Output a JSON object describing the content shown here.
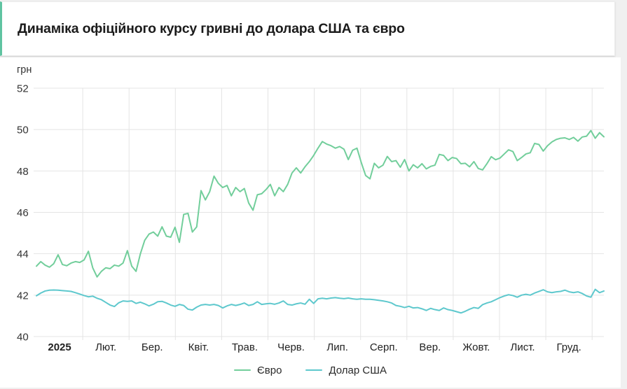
{
  "header": {
    "title": "Динаміка офіційного курсу гривні до долара США та євро",
    "accent_color": "#5fc3a1"
  },
  "chart_data": {
    "type": "line",
    "title": "Динаміка офіційного курсу гривні до долара США та євро",
    "unit_label": "грн",
    "ylabel": "грн",
    "ylim": [
      40,
      52
    ],
    "yticks": [
      52,
      50,
      48,
      46,
      44,
      42,
      40
    ],
    "grid": true,
    "legend_position": "bottom",
    "x_axis": {
      "months": [
        "2025",
        "Лют.",
        "Бер.",
        "Квіт.",
        "Трав.",
        "Черв.",
        "Лип.",
        "Серп.",
        "Вер.",
        "Жовт.",
        "Лист.",
        "Груд."
      ],
      "first_label_bold": true
    },
    "colors": {
      "grid": "#e4e4e4",
      "tick_text": "#333333"
    },
    "series": [
      {
        "name": "Євро",
        "color": "#72CE9B",
        "values": [
          43.4,
          43.62,
          43.45,
          43.35,
          43.52,
          43.95,
          43.48,
          43.42,
          43.55,
          43.62,
          43.58,
          43.7,
          44.12,
          43.32,
          42.88,
          43.15,
          43.32,
          43.28,
          43.45,
          43.4,
          43.55,
          44.15,
          43.4,
          43.15,
          44.0,
          44.65,
          44.95,
          45.05,
          44.85,
          45.3,
          44.85,
          44.8,
          45.28,
          44.55,
          45.9,
          45.95,
          45.05,
          45.3,
          47.05,
          46.6,
          47.0,
          47.75,
          47.4,
          47.2,
          47.3,
          46.8,
          47.2,
          47.0,
          47.15,
          46.45,
          46.1,
          46.85,
          46.9,
          47.1,
          47.35,
          46.8,
          47.2,
          47.0,
          47.35,
          47.9,
          48.15,
          47.9,
          48.2,
          48.45,
          48.75,
          49.1,
          49.42,
          49.3,
          49.22,
          49.1,
          49.18,
          49.05,
          48.55,
          49.0,
          49.1,
          48.4,
          47.78,
          47.62,
          48.37,
          48.15,
          48.28,
          48.7,
          48.45,
          48.5,
          48.18,
          48.55,
          48.0,
          48.3,
          48.15,
          48.35,
          48.1,
          48.22,
          48.28,
          48.8,
          48.75,
          48.5,
          48.65,
          48.6,
          48.35,
          48.37,
          48.2,
          48.45,
          48.12,
          48.05,
          48.35,
          48.69,
          48.54,
          48.62,
          48.82,
          49.02,
          48.94,
          48.5,
          48.65,
          48.82,
          48.88,
          49.33,
          49.28,
          48.96,
          49.22,
          49.4,
          49.52,
          49.58,
          49.6,
          49.52,
          49.62,
          49.44,
          49.64,
          49.68,
          49.95,
          49.58,
          49.85,
          49.65
        ]
      },
      {
        "name": "Долар США",
        "color": "#5EC8CD",
        "values": [
          41.97,
          42.1,
          42.2,
          42.24,
          42.25,
          42.24,
          42.22,
          42.2,
          42.18,
          42.12,
          42.05,
          41.98,
          41.92,
          41.95,
          41.85,
          41.78,
          41.65,
          41.52,
          41.45,
          41.63,
          41.72,
          41.7,
          41.72,
          41.6,
          41.66,
          41.58,
          41.48,
          41.56,
          41.68,
          41.7,
          41.62,
          41.52,
          41.46,
          41.55,
          41.5,
          41.32,
          41.28,
          41.42,
          41.52,
          41.55,
          41.52,
          41.55,
          41.5,
          41.38,
          41.48,
          41.55,
          41.5,
          41.55,
          41.62,
          41.5,
          41.55,
          41.68,
          41.55,
          41.58,
          41.6,
          41.56,
          41.62,
          41.72,
          41.55,
          41.52,
          41.58,
          41.62,
          41.56,
          41.8,
          41.6,
          41.82,
          41.85,
          41.82,
          41.86,
          41.88,
          41.85,
          41.83,
          41.86,
          41.82,
          41.8,
          41.82,
          41.8,
          41.8,
          41.78,
          41.75,
          41.72,
          41.68,
          41.62,
          41.5,
          41.46,
          41.4,
          41.46,
          41.38,
          41.4,
          41.34,
          41.26,
          41.36,
          41.3,
          41.26,
          41.38,
          41.3,
          41.26,
          41.2,
          41.14,
          41.22,
          41.32,
          41.4,
          41.36,
          41.54,
          41.62,
          41.68,
          41.78,
          41.88,
          41.96,
          42.02,
          41.98,
          41.9,
          42.0,
          42.04,
          42.0,
          42.1,
          42.18,
          42.26,
          42.16,
          42.12,
          42.16,
          42.18,
          42.24,
          42.16,
          42.12,
          42.16,
          42.08,
          41.96,
          41.9,
          42.28,
          42.12,
          42.2
        ]
      }
    ]
  }
}
